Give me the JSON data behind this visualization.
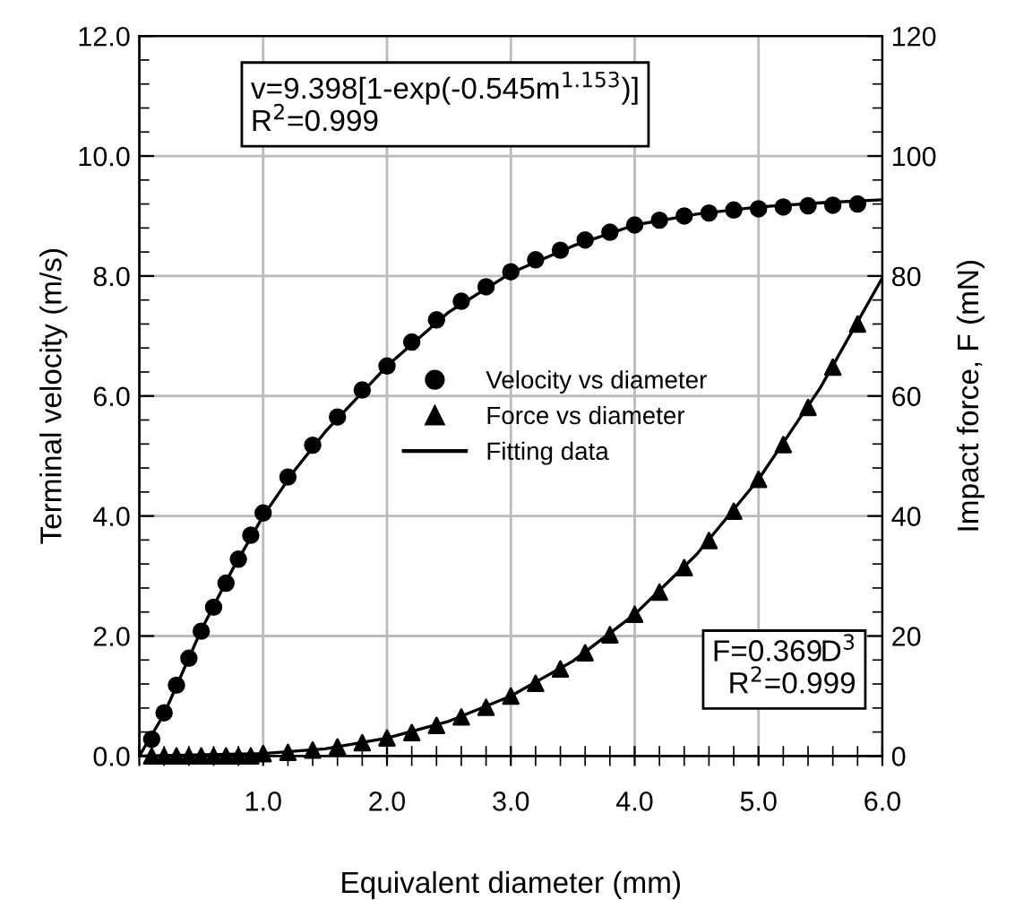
{
  "chart_data": {
    "type": "scatter",
    "xlabel": "Equivalent diameter (mm)",
    "ylabel": "Terminal velocity (m/s)",
    "y2label": "Impact force, F (mN)",
    "xlim": [
      0,
      6
    ],
    "xticks": [
      {
        "value": 0,
        "label": null
      },
      {
        "value": 1,
        "label": "1.0"
      },
      {
        "value": 2,
        "label": "2.0"
      },
      {
        "value": 3,
        "label": "3.0"
      },
      {
        "value": 4,
        "label": "4.0"
      },
      {
        "value": 5,
        "label": "5.0"
      },
      {
        "value": 6,
        "label": "6.0"
      }
    ],
    "ylim": [
      0,
      12
    ],
    "yticks": [
      {
        "value": 0,
        "label": "0.0"
      },
      {
        "value": 2,
        "label": "2.0"
      },
      {
        "value": 4,
        "label": "4.0"
      },
      {
        "value": 6,
        "label": "6.0"
      },
      {
        "value": 8,
        "label": "8.0"
      },
      {
        "value": 10,
        "label": "10.0"
      },
      {
        "value": 12,
        "label": "12.0"
      }
    ],
    "y2lim": [
      0,
      120
    ],
    "y2ticks": [
      0,
      20,
      40,
      60,
      80,
      100,
      120
    ],
    "grid": true,
    "legend": "center",
    "series": [
      {
        "name": "Velocity vs diameter",
        "marker": "circle",
        "color": "#000000",
        "x": [
          0.1,
          0.2,
          0.3,
          0.4,
          0.5,
          0.6,
          0.7,
          0.8,
          0.9,
          1.0,
          1.2,
          1.4,
          1.6,
          1.8,
          2.0,
          2.2,
          2.4,
          2.6,
          2.8,
          3.0,
          3.2,
          3.4,
          3.6,
          3.8,
          4.0,
          4.2,
          4.4,
          4.6,
          4.8,
          5.0,
          5.2,
          5.4,
          5.6,
          5.8
        ],
        "values": [
          0.28,
          0.72,
          1.18,
          1.63,
          2.08,
          2.48,
          2.88,
          3.28,
          3.68,
          4.05,
          4.65,
          5.18,
          5.65,
          6.1,
          6.5,
          6.9,
          7.27,
          7.58,
          7.82,
          8.07,
          8.27,
          8.43,
          8.6,
          8.73,
          8.85,
          8.93,
          9.0,
          9.05,
          9.1,
          9.12,
          9.15,
          9.17,
          9.18,
          9.2
        ]
      },
      {
        "name": "Force vs diameter",
        "marker": "triangle",
        "color": "#000000",
        "axis": "y2",
        "x": [
          0.1,
          0.2,
          0.3,
          0.4,
          0.5,
          0.6,
          0.7,
          0.8,
          0.9,
          1.0,
          1.2,
          1.4,
          1.6,
          1.8,
          2.0,
          2.2,
          2.4,
          2.6,
          2.8,
          3.0,
          3.2,
          3.4,
          3.6,
          3.8,
          4.0,
          4.2,
          4.4,
          4.6,
          4.8,
          5.0,
          5.2,
          5.4,
          5.6,
          5.8
        ],
        "values": [
          0,
          0,
          0,
          0,
          0,
          0,
          0,
          0,
          0,
          0.4,
          0.6,
          1.0,
          1.5,
          2.2,
          3.0,
          3.9,
          5.1,
          6.5,
          8.1,
          10.0,
          12.1,
          14.5,
          17.2,
          20.2,
          23.6,
          27.3,
          31.4,
          35.9,
          40.8,
          46.1,
          51.9,
          58.1,
          64.8,
          72.0
        ]
      },
      {
        "name": "Fitting data",
        "type": "line",
        "marker": "none",
        "line_style": "solid",
        "color": "#000000",
        "x": [
          0,
          0.2,
          0.5,
          0.75,
          1.0,
          1.25,
          1.5,
          2.0,
          2.5,
          3.0,
          3.5,
          4.0,
          4.5,
          5.0,
          5.5,
          6.0
        ],
        "values": [
          0,
          0.7,
          2.1,
          3.1,
          4.0,
          4.75,
          5.4,
          6.5,
          7.4,
          8.05,
          8.5,
          8.85,
          9.03,
          9.15,
          9.22,
          9.27
        ]
      },
      {
        "type": "line",
        "marker": "none",
        "line_style": "solid",
        "color": "#000000",
        "axis": "y2",
        "x": [
          0,
          1.0,
          1.5,
          2.0,
          2.5,
          3.0,
          3.5,
          4.0,
          4.5,
          5.0,
          5.5,
          6.0
        ],
        "values": [
          0,
          0.4,
          1.2,
          3.0,
          5.8,
          10.0,
          15.8,
          23.6,
          33.6,
          46.1,
          61.4,
          79.7
        ]
      }
    ],
    "annotations": [
      "v=9.398[1-exp(-0.545m$^{1.153}$)]\nR$^{2}$=0.999",
      "F=0.369D$^{3}$\nR$^{2}$=0.999"
    ]
  }
}
